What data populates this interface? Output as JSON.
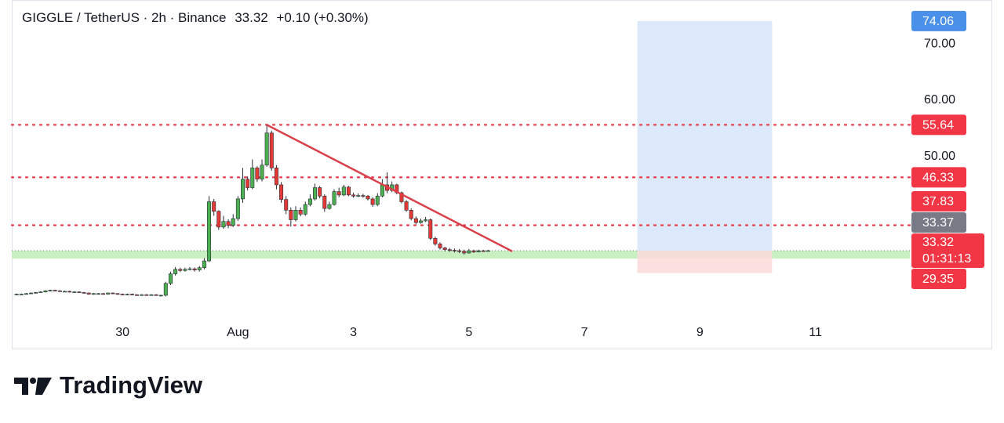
{
  "chart_data": {
    "type": "candlestick",
    "symbol": "GIGGLE / TetherUS · 2h · Binance",
    "last": 33.32,
    "change": "+0.10 (+0.30%)",
    "countdown": "01:31:13",
    "brand": "TradingView",
    "up_color": "#4caf50",
    "down_color": "#e53935",
    "wick_color": "#2a2e39",
    "ylim": [
      21.5,
      77.1
    ],
    "yticks": [
      {
        "value": 50,
        "label": "50.00"
      },
      {
        "value": 60,
        "label": "60.00"
      },
      {
        "value": 70,
        "label": "70.00"
      }
    ],
    "xlim": [
      -1,
      184
    ],
    "xticks": [
      {
        "value": 22,
        "label": "30"
      },
      {
        "value": 46,
        "label": "Aug"
      },
      {
        "value": 70,
        "label": "3"
      },
      {
        "value": 94,
        "label": "5"
      },
      {
        "value": 118,
        "label": "7"
      },
      {
        "value": 142,
        "label": "9"
      },
      {
        "value": 166,
        "label": "11"
      }
    ],
    "open": [
      25.5,
      25.6,
      25.6,
      25.7,
      25.8,
      25.9,
      26.0,
      26.2,
      26.3,
      26.2,
      26.1,
      26.1,
      26.0,
      26.0,
      25.9,
      25.8,
      25.6,
      25.7,
      25.7,
      25.6,
      25.8,
      25.7,
      25.6,
      25.5,
      25.6,
      25.5,
      25.4,
      25.5,
      25.4,
      25.5,
      25.4,
      25.4,
      27.5,
      29.2,
      30.0,
      29.8,
      30.0,
      30.1,
      29.9,
      30.3,
      31.5,
      42.0,
      40.3,
      37.5,
      38.5,
      37.8,
      39.0,
      42.5,
      46.0,
      44.5,
      48.0,
      46.0,
      48.5,
      54.2,
      48.0,
      45.0,
      42.4,
      40.5,
      38.8,
      40.5,
      39.8,
      41.5,
      42.5,
      44.5,
      43.0,
      40.8,
      41.5,
      43.8,
      43.2,
      44.6,
      43.2,
      43.0,
      43.1,
      43.0,
      42.5,
      41.5,
      43.0,
      45.0,
      44.0,
      45.0,
      43.6,
      42.0,
      40.5,
      39.0,
      38.3,
      38.6,
      38.8,
      35.5,
      34.5,
      33.8,
      33.5,
      33.4,
      33.3,
      33.2,
      32.9,
      33.3,
      33.1,
      33.3,
      33.22
    ],
    "high": [
      25.7,
      25.7,
      25.8,
      25.9,
      26.0,
      26.1,
      26.3,
      26.4,
      26.4,
      26.3,
      26.2,
      26.2,
      26.1,
      26.1,
      26.0,
      25.9,
      25.8,
      25.8,
      25.8,
      25.9,
      25.9,
      25.8,
      25.7,
      25.7,
      25.7,
      25.6,
      25.6,
      25.6,
      25.6,
      25.6,
      25.5,
      27.8,
      29.6,
      30.4,
      30.3,
      30.3,
      30.4,
      30.3,
      30.6,
      32.0,
      43.0,
      42.5,
      40.5,
      39.5,
      38.9,
      39.8,
      43.0,
      48.0,
      46.5,
      49.5,
      48.3,
      49.5,
      55.64,
      54.6,
      48.5,
      45.5,
      43.0,
      41.0,
      41.2,
      41.0,
      42.0,
      43.3,
      45.2,
      44.8,
      43.3,
      42.0,
      44.2,
      44.5,
      45.0,
      44.8,
      43.6,
      43.5,
      43.4,
      43.2,
      42.8,
      43.5,
      46.0,
      47.2,
      45.6,
      45.2,
      43.8,
      42.3,
      40.8,
      39.4,
      39.0,
      39.3,
      39.0,
      35.8,
      34.8,
      34.0,
      33.8,
      33.7,
      33.6,
      33.5,
      33.6,
      33.5,
      33.5,
      33.45,
      33.45
    ],
    "low": [
      25.4,
      25.5,
      25.5,
      25.6,
      25.7,
      25.8,
      25.9,
      26.1,
      26.1,
      26.0,
      26.0,
      25.9,
      25.9,
      25.8,
      25.7,
      25.5,
      25.5,
      25.6,
      25.5,
      25.5,
      25.6,
      25.5,
      25.4,
      25.4,
      25.4,
      25.3,
      25.3,
      25.3,
      25.3,
      25.3,
      25.2,
      25.2,
      27.2,
      28.9,
      29.5,
      29.6,
      29.8,
      29.6,
      29.6,
      30.0,
      31.3,
      39.5,
      37.0,
      37.2,
      37.3,
      37.5,
      38.6,
      41.8,
      44.0,
      44.2,
      45.5,
      45.6,
      48.2,
      47.5,
      44.2,
      41.8,
      39.8,
      37.6,
      38.5,
      39.4,
      39.5,
      41.2,
      42.2,
      42.6,
      40.2,
      40.6,
      41.3,
      42.8,
      43.0,
      43.0,
      42.7,
      42.8,
      42.7,
      42.2,
      41.1,
      41.2,
      42.8,
      43.5,
      43.7,
      43.3,
      41.7,
      40.2,
      38.7,
      38.0,
      38.1,
      38.4,
      35.2,
      34.2,
      33.5,
      33.2,
      33.1,
      33.0,
      32.9,
      32.6,
      32.8,
      32.9,
      33.0,
      33.1,
      33.15
    ],
    "close": [
      25.6,
      25.6,
      25.7,
      25.8,
      25.9,
      26.0,
      26.2,
      26.3,
      26.2,
      26.1,
      26.1,
      26.0,
      26.0,
      25.9,
      25.8,
      25.6,
      25.7,
      25.7,
      25.6,
      25.8,
      25.7,
      25.6,
      25.5,
      25.6,
      25.5,
      25.4,
      25.5,
      25.4,
      25.5,
      25.4,
      25.4,
      27.5,
      29.2,
      30.0,
      29.8,
      30.0,
      30.1,
      29.9,
      30.3,
      31.5,
      42.0,
      40.3,
      37.5,
      38.5,
      37.8,
      39.0,
      42.5,
      46.0,
      44.5,
      48.0,
      46.0,
      48.5,
      54.2,
      48.0,
      45.0,
      42.4,
      40.5,
      38.8,
      40.5,
      39.8,
      41.5,
      42.5,
      44.5,
      43.0,
      40.8,
      41.5,
      43.8,
      43.2,
      44.6,
      43.2,
      43.0,
      43.1,
      43.0,
      42.5,
      41.5,
      43.0,
      45.0,
      44.0,
      45.0,
      43.6,
      42.0,
      40.5,
      39.0,
      38.3,
      38.6,
      38.8,
      35.5,
      34.5,
      33.8,
      33.5,
      33.4,
      33.3,
      33.2,
      32.9,
      33.3,
      33.1,
      33.3,
      33.22,
      33.32
    ],
    "levels": {
      "values": [
        55.64,
        46.33,
        37.83
      ],
      "color": "#e53945"
    },
    "support_zone": {
      "range": [
        31.9,
        33.32
      ],
      "color": "#c8f0c0"
    },
    "trendline": {
      "x": [
        52,
        103
      ],
      "y": [
        55.64,
        33.2
      ],
      "color": "#d9404a"
    },
    "position": {
      "x": [
        129,
        157
      ],
      "entry": 33.32,
      "target": 74.06,
      "stop": 29.35,
      "profit_color": "#dce9fb",
      "loss_color": "#fbdada"
    },
    "price_labels": [
      {
        "value": 74.06,
        "color": "#4a8fe8"
      },
      {
        "value": 55.64,
        "color": "#f23645"
      },
      {
        "value": 46.33,
        "color": "#f23645"
      },
      {
        "value": 37.83,
        "color": "#f23645"
      },
      {
        "value": 33.37,
        "color": "#787b86"
      },
      {
        "value": 33.32,
        "color": "#f23645",
        "current": true
      },
      {
        "value": 29.35,
        "color": "#f23645"
      }
    ]
  }
}
